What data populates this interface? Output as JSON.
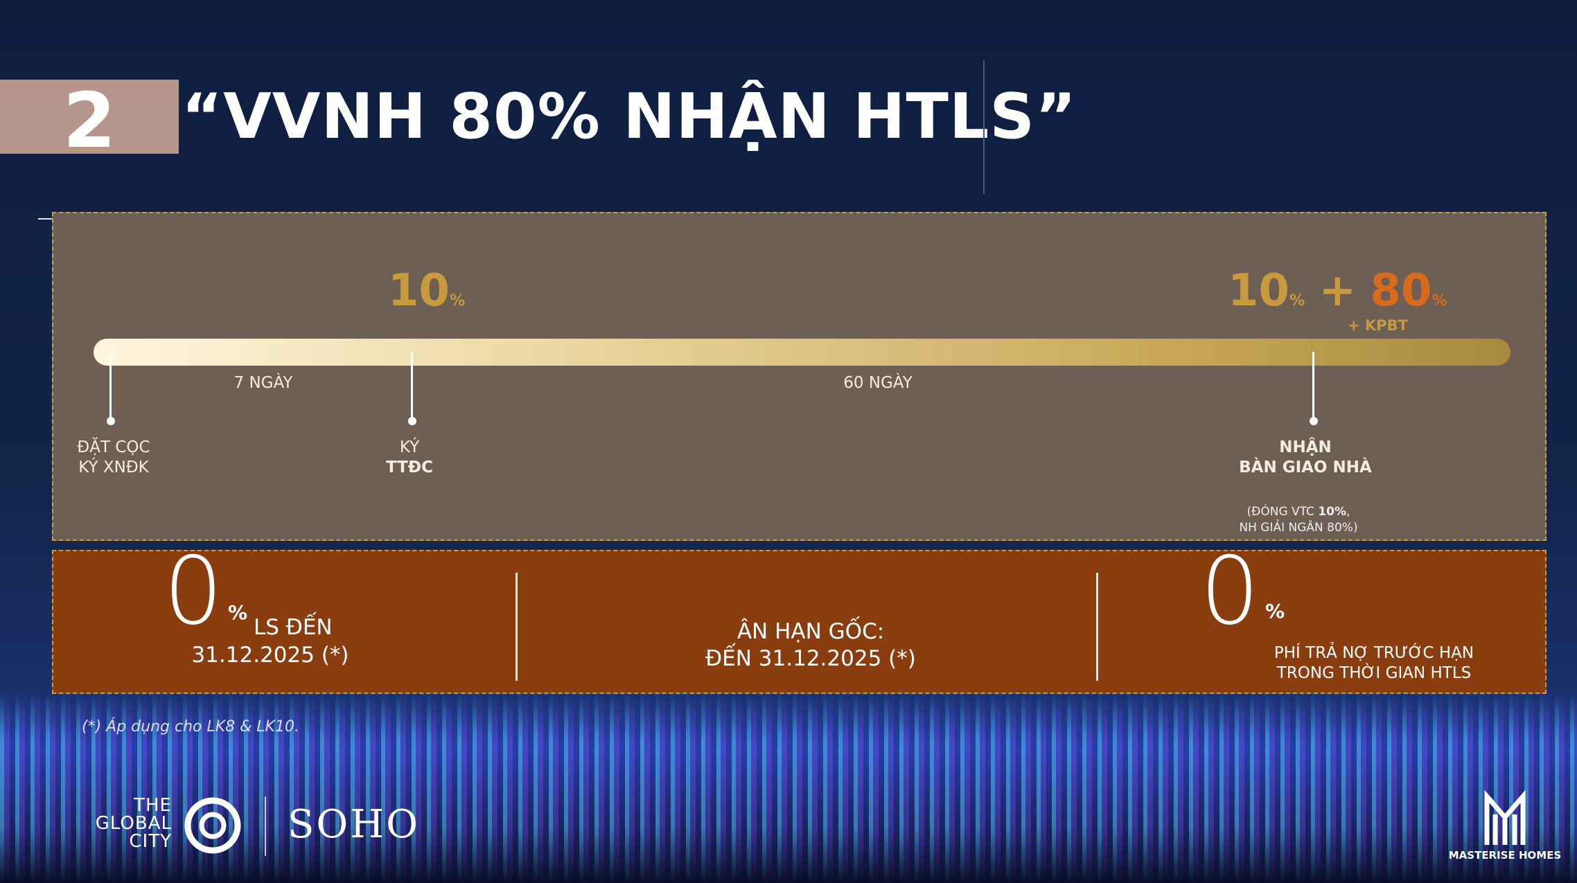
{
  "header": {
    "number": "2",
    "title": "“VVNH 80% NHẬN HTLS”"
  },
  "timeline": {
    "top_left": {
      "value": "10",
      "unit": "%"
    },
    "top_right": {
      "value_a": "10",
      "unit_a": "%",
      "plus": "+",
      "value_b": "80",
      "unit_b": "%",
      "note": "+ KPBT"
    },
    "durations": [
      "7 NGÀY",
      "60 NGÀY"
    ],
    "milestones": [
      {
        "line1": "ĐẶT CỌC",
        "line2": "KÝ XNĐK"
      },
      {
        "line1": "KÝ",
        "line2": "TTĐC"
      },
      {
        "line1": "NHẬN",
        "line2": "BÀN GIAO NHÀ"
      }
    ],
    "note": {
      "part1": "(ĐÓNG VTC ",
      "bold": "10%",
      "part2": ",",
      "line2": "NH GIẢI NGÂN 80%)"
    }
  },
  "benefits": [
    {
      "big": "0",
      "unit": "%",
      "line1": "LS ĐẾN",
      "line2": "31.12.2025 (*)"
    },
    {
      "line1": "ÂN HẠN GỐC:",
      "line2": "ĐẾN 31.12.2025 (*)"
    },
    {
      "big": "0",
      "unit": "%",
      "line1": "PHÍ TRẢ NỢ TRƯỚC HẠN",
      "line2": "TRONG THỜI GIAN HTLS"
    }
  ],
  "footnote": "(*) Áp dụng cho LK8 & LK10.",
  "logos": {
    "global_city": [
      "THE",
      "GLOBAL",
      "CITY"
    ],
    "soho": "SOHO",
    "masterise": "MASTERISE HOMES"
  }
}
